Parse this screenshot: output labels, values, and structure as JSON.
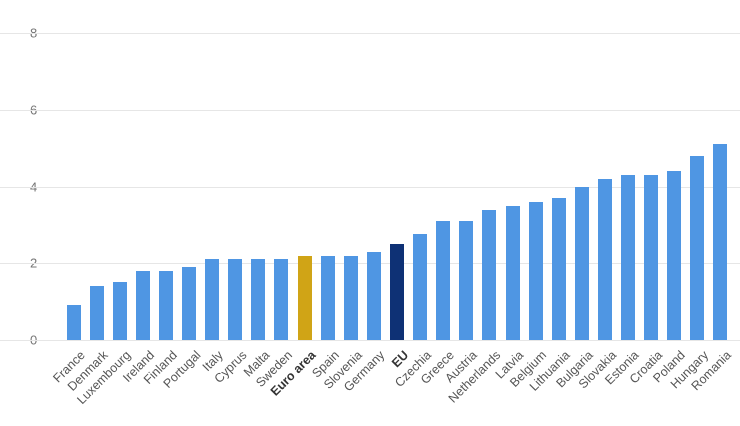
{
  "chart_data": {
    "type": "bar",
    "title": "",
    "xlabel": "",
    "ylabel": "",
    "ylim": [
      0,
      8
    ],
    "yticks": [
      0,
      2,
      4,
      6,
      8
    ],
    "grid": true,
    "legend": "none",
    "categories": [
      "France",
      "Denmark",
      "Luxembourg",
      "Ireland",
      "Finland",
      "Portugal",
      "Italy",
      "Cyprus",
      "Malta",
      "Sweden",
      "Euro area",
      "Spain",
      "Slovenia",
      "Germany",
      "EU",
      "Czechia",
      "Greece",
      "Austria",
      "Netherlands",
      "Latvia",
      "Belgium",
      "Lithuania",
      "Bulgaria",
      "Slovakia",
      "Estonia",
      "Croatia",
      "Poland",
      "Hungary",
      "Romania"
    ],
    "values": [
      0.9,
      1.4,
      1.5,
      1.8,
      1.8,
      1.9,
      2.1,
      2.1,
      2.1,
      2.1,
      2.2,
      2.2,
      2.2,
      2.3,
      2.5,
      2.75,
      3.1,
      3.1,
      3.4,
      3.5,
      3.6,
      3.7,
      4.0,
      4.2,
      4.3,
      4.3,
      4.4,
      4.8,
      5.1
    ],
    "colors": {
      "default_bar": "#4f96e3",
      "highlighted": {
        "Euro area": "#d0a416",
        "EU": "#0e3175"
      }
    },
    "bold_labels": [
      "Euro area",
      "EU"
    ],
    "gridline_color": "#e6e6e6",
    "tick_label_color": "#757575"
  }
}
